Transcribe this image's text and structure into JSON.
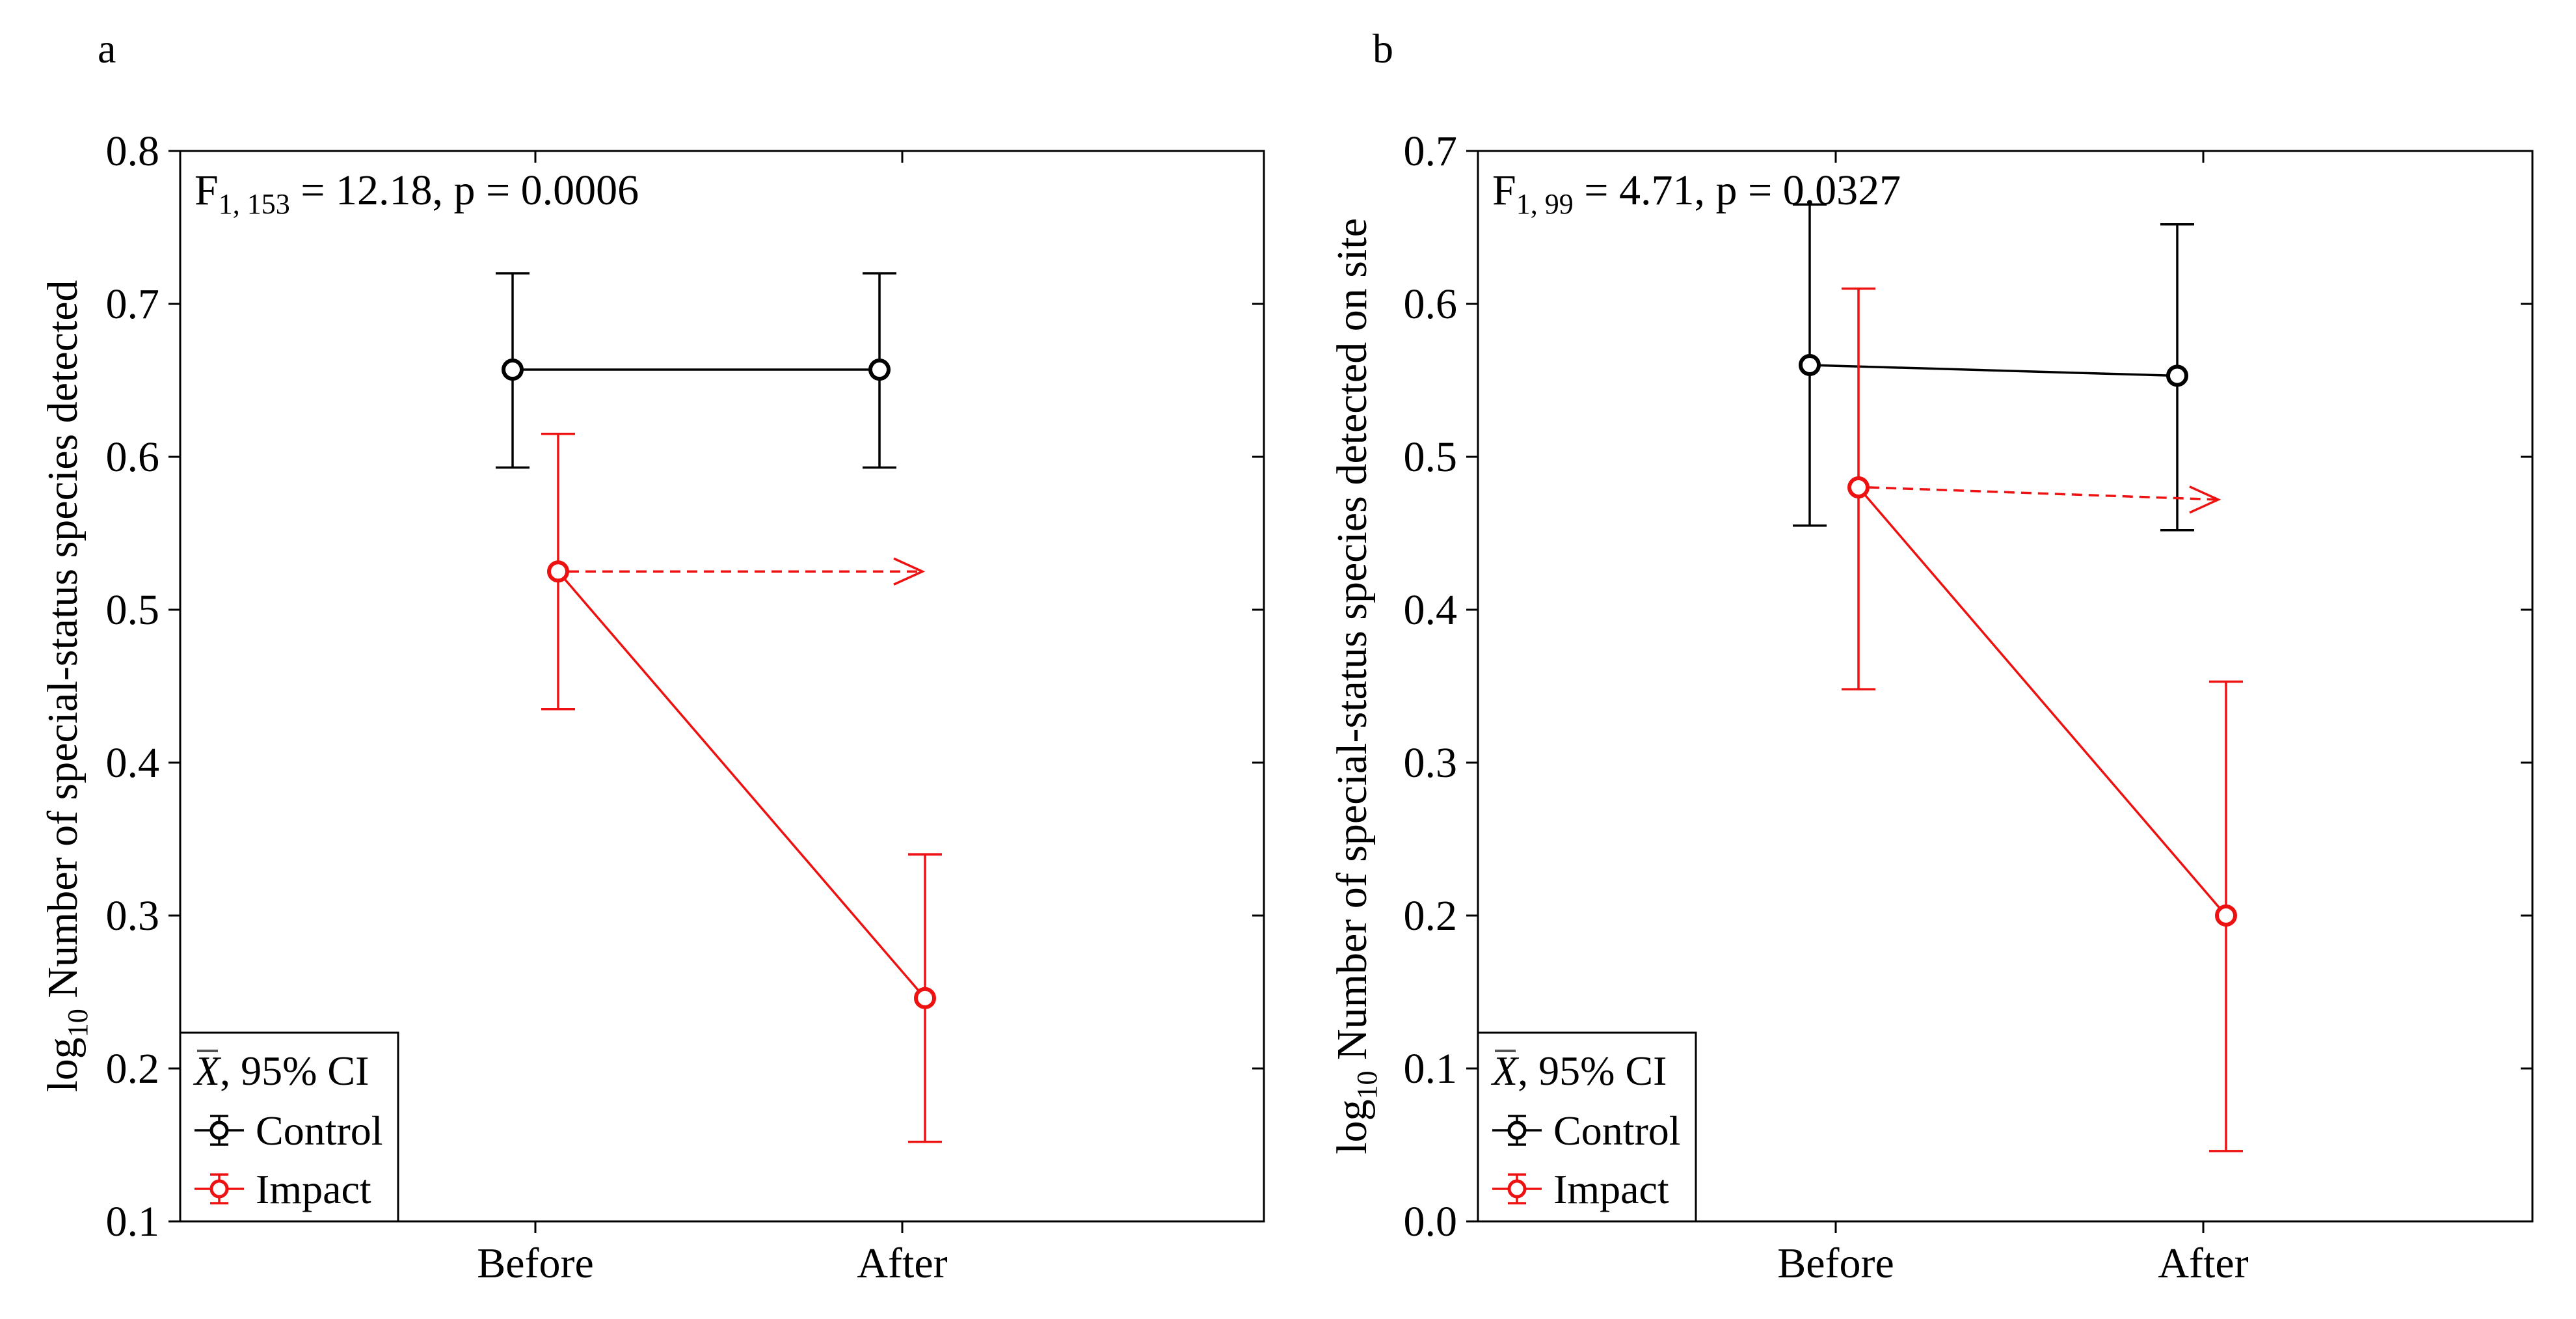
{
  "chart_data": [
    {
      "type": "line",
      "panel_label": "a",
      "annotation": {
        "F": "F",
        "df": "1, 153",
        "rest": " = 12.18, p = 0.0006"
      },
      "ylabel": {
        "prefix": "log",
        "sub": "10",
        "text": " Number of special-status species detected"
      },
      "ylim": [
        0.1,
        0.8
      ],
      "y_ticks": [
        0.1,
        0.2,
        0.3,
        0.4,
        0.5,
        0.6,
        0.7,
        0.8
      ],
      "y_tick_labels": [
        "0.1",
        "0.2",
        "0.3",
        "0.4",
        "0.5",
        "0.6",
        "0.7",
        "0.8"
      ],
      "categories": [
        "Before",
        "After"
      ],
      "series": [
        {
          "name": "Control",
          "color": "#000000",
          "mean": [
            0.657,
            0.657
          ],
          "ci_low": [
            0.593,
            0.593
          ],
          "ci_high": [
            0.72,
            0.72
          ]
        },
        {
          "name": "Impact",
          "color": "#ee1111",
          "mean": [
            0.525,
            0.246
          ],
          "ci_low": [
            0.435,
            0.152
          ],
          "ci_high": [
            0.615,
            0.34
          ]
        }
      ],
      "reference_arrow": {
        "series": "Impact",
        "style": "dashed",
        "from_category": "Before",
        "y": 0.525
      },
      "grid": false,
      "legend": {
        "position": "bottom-left",
        "header_symbol": "X",
        "header_text": ", 95% CI",
        "entries": [
          "Control",
          "Impact"
        ]
      }
    },
    {
      "type": "line",
      "panel_label": "b",
      "annotation": {
        "F": "F",
        "df": "1, 99",
        "rest": " = 4.71, p = 0.0327"
      },
      "ylabel": {
        "prefix": "log",
        "sub": "10",
        "text": " Number of special-status species detected on site"
      },
      "ylim": [
        0.0,
        0.7
      ],
      "y_ticks": [
        0.0,
        0.1,
        0.2,
        0.3,
        0.4,
        0.5,
        0.6,
        0.7
      ],
      "y_tick_labels": [
        "0.0",
        "0.1",
        "0.2",
        "0.3",
        "0.4",
        "0.5",
        "0.6",
        "0.7"
      ],
      "categories": [
        "Before",
        "After"
      ],
      "series": [
        {
          "name": "Control",
          "color": "#000000",
          "mean": [
            0.56,
            0.553
          ],
          "ci_low": [
            0.455,
            0.452
          ],
          "ci_high": [
            0.665,
            0.652
          ]
        },
        {
          "name": "Impact",
          "color": "#ee1111",
          "mean": [
            0.48,
            0.2
          ],
          "ci_low": [
            0.348,
            0.046
          ],
          "ci_high": [
            0.61,
            0.353
          ]
        }
      ],
      "reference_arrow": {
        "series": "Impact",
        "style": "dashed",
        "from_category": "Before",
        "y": 0.48
      },
      "grid": false,
      "legend": {
        "position": "bottom-left",
        "header_symbol": "X",
        "header_text": ", 95% CI",
        "entries": [
          "Control",
          "Impact"
        ]
      }
    }
  ]
}
